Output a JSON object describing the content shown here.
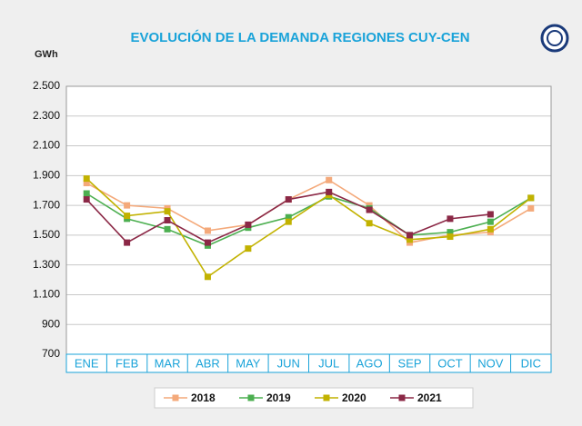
{
  "chart_data": {
    "type": "line",
    "title": "EVOLUCIÓN DE LA DEMANDA REGIONES CUY-CEN",
    "y_label": "GWh",
    "categories": [
      "ENE",
      "FEB",
      "MAR",
      "ABR",
      "MAY",
      "JUN",
      "JUL",
      "AGO",
      "SEP",
      "OCT",
      "NOV",
      "DIC"
    ],
    "series": [
      {
        "name": "2018",
        "color": "#f4a97a",
        "values": [
          1850,
          1700,
          1680,
          1530,
          1570,
          1740,
          1870,
          1700,
          1450,
          1500,
          1520,
          1680
        ]
      },
      {
        "name": "2019",
        "color": "#4caf50",
        "values": [
          1780,
          1610,
          1540,
          1430,
          1550,
          1620,
          1760,
          1680,
          1500,
          1520,
          1590,
          1750
        ]
      },
      {
        "name": "2020",
        "color": "#c2b200",
        "values": [
          1880,
          1630,
          1660,
          1220,
          1410,
          1590,
          1770,
          1580,
          1470,
          1490,
          1540,
          1750
        ]
      },
      {
        "name": "2021",
        "color": "#8b2846",
        "values": [
          1740,
          1450,
          1600,
          1450,
          1570,
          1740,
          1790,
          1670,
          1500,
          1610,
          1640,
          null
        ]
      }
    ],
    "ylim": [
      700,
      2500
    ],
    "yticks": [
      700,
      900,
      {
        "value": 1100,
        "label": "1.100"
      },
      {
        "value": 1300,
        "label": "1.300"
      },
      {
        "value": 1500,
        "label": "1.500"
      },
      {
        "value": 1700,
        "label": "1.700"
      },
      {
        "value": 1900,
        "label": "1.900"
      },
      {
        "value": 2100,
        "label": "2.100"
      },
      {
        "value": 2300,
        "label": "2.300"
      },
      {
        "value": 2500,
        "label": "2.500"
      }
    ],
    "grid": true,
    "legend": "bottom"
  }
}
